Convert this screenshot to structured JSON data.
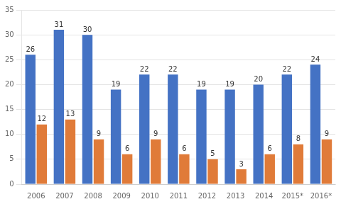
{
  "chart_data": {
    "type": "bar",
    "categories": [
      "2006",
      "2007",
      "2008",
      "2009",
      "2010",
      "2011",
      "2012",
      "2013",
      "2014",
      "2015*",
      "2016*"
    ],
    "series": [
      {
        "color": "#4472C4",
        "values": [
          26,
          31,
          30,
          19,
          22,
          22,
          19,
          19,
          20,
          22,
          24
        ]
      },
      {
        "color": "#E07B39",
        "values": [
          12,
          13,
          9,
          6,
          9,
          6,
          5,
          3,
          6,
          8,
          9
        ]
      }
    ],
    "ylim": [
      0,
      35
    ],
    "yticks": [
      0,
      5,
      10,
      15,
      20,
      25,
      30,
      35
    ],
    "grid": true,
    "data_labels": true
  }
}
